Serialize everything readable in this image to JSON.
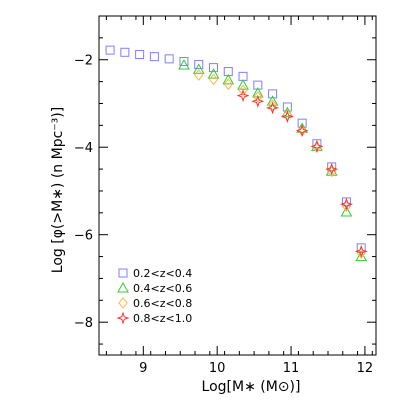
{
  "chart_data": {
    "type": "scatter",
    "xlabel": "Log[M∗ (M⊙)]",
    "ylabel": "Log [φ(>M∗) (n Mpc⁻³)]",
    "xlim": [
      8.4,
      12.15
    ],
    "ylim": [
      -8.75,
      -1.0
    ],
    "xticks": [
      9,
      10,
      11,
      12
    ],
    "xtick_labels": [
      "9",
      "10",
      "11",
      "12"
    ],
    "yticks": [
      -8,
      -6,
      -4,
      -2
    ],
    "ytick_labels": [
      "−8",
      "−6",
      "−4",
      "−2"
    ],
    "legend_position": "bottom-left",
    "series": [
      {
        "name": "0.2<z<0.4",
        "marker": "square",
        "color": "#7f7fff",
        "x": [
          8.55,
          8.75,
          8.95,
          9.15,
          9.35,
          9.55,
          9.75,
          9.95,
          10.15,
          10.35,
          10.55,
          10.75,
          10.95,
          11.15,
          11.35,
          11.55,
          11.75,
          11.95
        ],
        "y": [
          -1.78,
          -1.83,
          -1.88,
          -1.93,
          -1.98,
          -2.04,
          -2.11,
          -2.18,
          -2.27,
          -2.38,
          -2.58,
          -2.78,
          -3.08,
          -3.45,
          -3.92,
          -4.45,
          -5.25,
          -6.3
        ]
      },
      {
        "name": "0.4<z<0.6",
        "marker": "triangle",
        "color": "#33cc33",
        "x": [
          9.55,
          9.75,
          9.95,
          10.15,
          10.35,
          10.55,
          10.75,
          10.95,
          11.15,
          11.35,
          11.55,
          11.75,
          11.95
        ],
        "y": [
          -2.12,
          -2.22,
          -2.33,
          -2.46,
          -2.58,
          -2.76,
          -2.95,
          -3.21,
          -3.57,
          -3.98,
          -4.55,
          -5.48,
          -6.5
        ]
      },
      {
        "name": "0.6<z<0.8",
        "marker": "diamond",
        "color": "#ffb347",
        "x": [
          9.75,
          9.95,
          10.15,
          10.35,
          10.55,
          10.75,
          10.95,
          11.15,
          11.35,
          11.55,
          11.75,
          11.95
        ],
        "y": [
          -2.35,
          -2.45,
          -2.56,
          -2.7,
          -2.85,
          -3.04,
          -3.26,
          -3.62,
          -4.0,
          -4.55,
          -5.35,
          -6.42
        ]
      },
      {
        "name": "0.8<z<1.0",
        "marker": "star",
        "color": "#ff3333",
        "x": [
          10.35,
          10.55,
          10.75,
          10.95,
          11.15,
          11.35,
          11.55,
          11.75,
          11.95
        ],
        "y": [
          -2.82,
          -2.95,
          -3.1,
          -3.3,
          -3.62,
          -3.98,
          -4.5,
          -5.3,
          -6.38
        ]
      }
    ]
  }
}
